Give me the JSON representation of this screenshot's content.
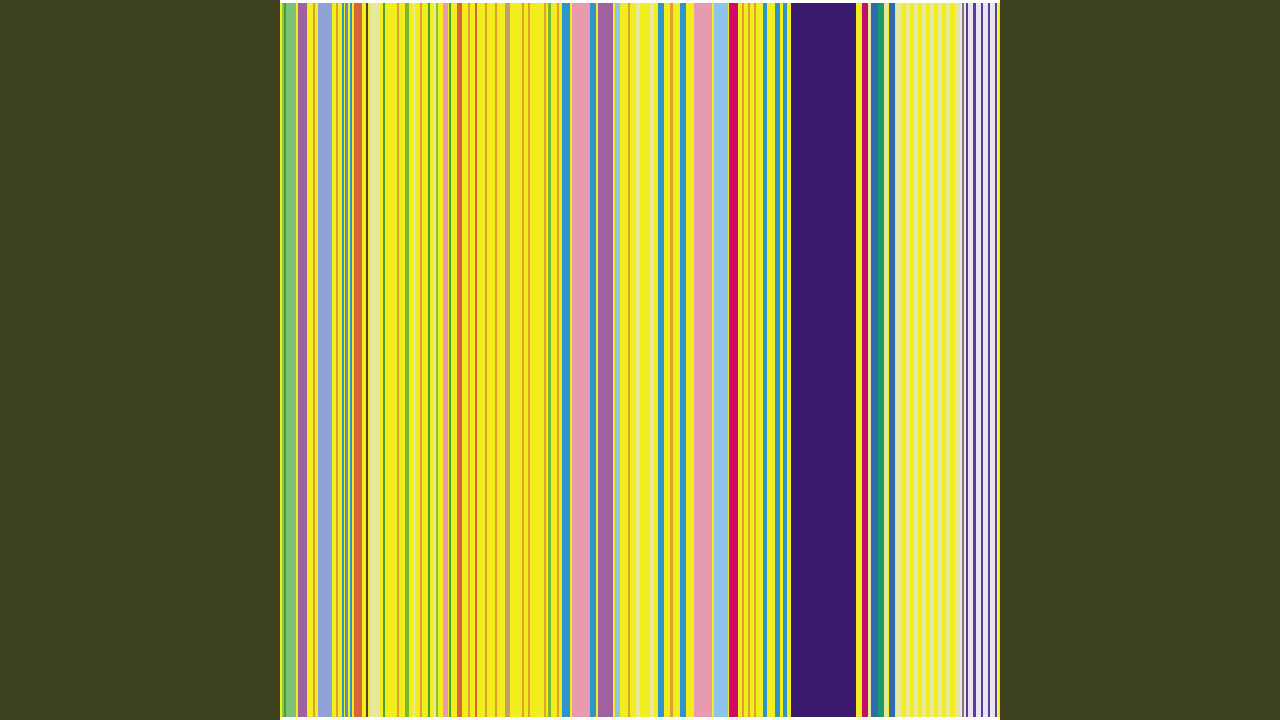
{
  "video_frame": {
    "background_color": "#3d401e",
    "artwork": {
      "description_type": "vertical-stripe-pattern",
      "base_color": "#f2ee1e",
      "palette": [
        "#f2ee1e",
        "#7dc07a",
        "#a0629e",
        "#8fa3d6",
        "#d9643a",
        "#2f94cc",
        "#e89aae",
        "#8cc4ec",
        "#d10a6a",
        "#3c1a70",
        "#1a9a6a",
        "#5a3c90",
        "#e0a030",
        "#e6e8a0"
      ]
    }
  }
}
